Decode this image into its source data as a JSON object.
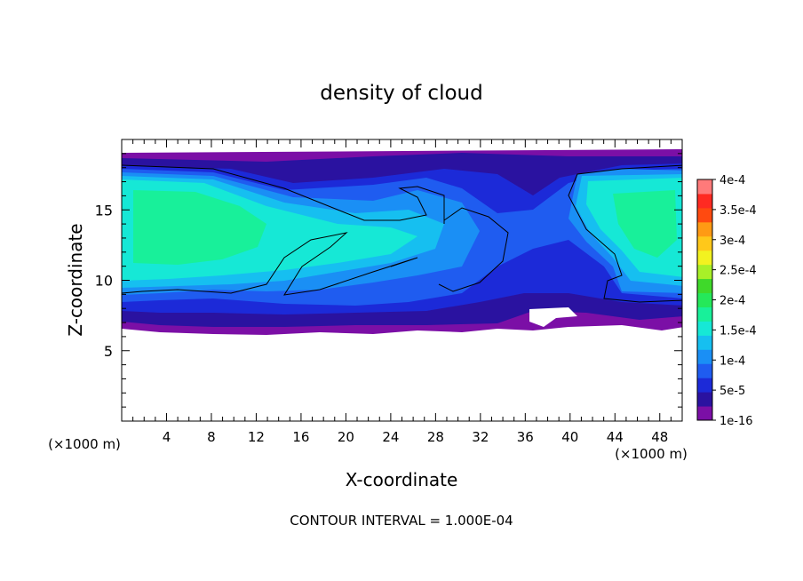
{
  "chart_data": {
    "type": "heatmap",
    "title": "density of cloud",
    "xlabel": "X-coordinate",
    "ylabel": "Z-coordinate",
    "x_unit_left": "(×1000 m)",
    "x_unit_right": "(×1000 m)",
    "xlim": [
      0,
      50
    ],
    "ylim": [
      0,
      20
    ],
    "x_ticks": [
      4,
      8,
      12,
      16,
      20,
      24,
      28,
      32,
      36,
      40,
      44,
      48
    ],
    "y_ticks": [
      5,
      10,
      15
    ],
    "footer": "CONTOUR INTERVAL = 1.000E-04",
    "colorbar": {
      "levels": [
        1e-16,
        2.5e-05,
        5e-05,
        7.5e-05,
        0.0001,
        0.000125,
        0.00015,
        0.000175,
        0.0002,
        0.000225,
        0.00025,
        0.000275,
        0.0003,
        0.000325,
        0.00035,
        0.000375,
        0.0004
      ],
      "colors": [
        "#7b0fa6",
        "#2a12a0",
        "#1c2ad8",
        "#1f5cf0",
        "#1a8ff5",
        "#16bff0",
        "#16e8d6",
        "#18f09a",
        "#25e85a",
        "#3fd92a",
        "#a8f028",
        "#f2f220",
        "#ffc81a",
        "#ff9a14",
        "#ff4a10",
        "#ff2a22",
        "#ff7a7a"
      ],
      "tick_labels": [
        "4e-4",
        "3.5e-4",
        "3e-4",
        "2.5e-4",
        "2e-4",
        "1.5e-4",
        "1e-4",
        "5e-5",
        "1e-16"
      ]
    }
  }
}
